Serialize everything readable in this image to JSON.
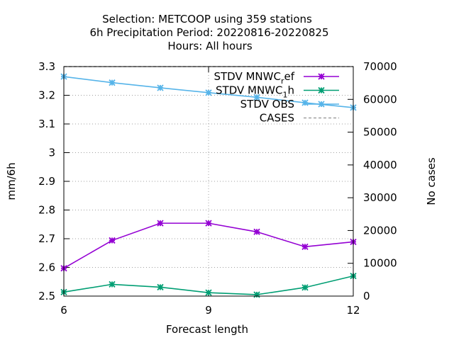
{
  "chart_data": {
    "type": "line",
    "title_lines": [
      "Selection: METCOOP using   359 stations",
      "6h Precipitation   Period: 20220816-20220825",
      "Hours:  All hours"
    ],
    "xlabel": "Forecast length",
    "ylabel": "mm/6h",
    "y2label": "No cases",
    "x": [
      6,
      7,
      8,
      9,
      10,
      11,
      12
    ],
    "xticks": [
      6,
      9,
      12
    ],
    "xlim": [
      6,
      12
    ],
    "ylim": [
      2.5,
      3.3
    ],
    "yticks": [
      2.5,
      2.6,
      2.7,
      2.8,
      2.9,
      3,
      3.1,
      3.2,
      3.3
    ],
    "y2lim": [
      0,
      70000
    ],
    "y2ticks": [
      0,
      10000,
      20000,
      30000,
      40000,
      50000,
      60000,
      70000
    ],
    "grid": true,
    "legend_position": "top-right",
    "series": [
      {
        "name": "STDV MNWC_ref",
        "label_main": "STDV MNWC",
        "label_sub": "r",
        "label_tail": "ef",
        "axis": "y",
        "color": "#9400d3",
        "values": [
          2.597,
          2.694,
          2.754,
          2.754,
          2.724,
          2.672,
          2.689
        ]
      },
      {
        "name": "STDV MNWC_1h",
        "label_main": "STDV MNWC",
        "label_sub": "1",
        "label_tail": "h",
        "axis": "y",
        "color": "#009e73",
        "values": [
          2.514,
          2.541,
          2.531,
          2.512,
          2.505,
          2.53,
          2.57
        ]
      },
      {
        "name": "STDV OBS",
        "label_main": "STDV OBS",
        "label_sub": "",
        "label_tail": "",
        "axis": "y",
        "color": "#56b4e9",
        "values": [
          3.265,
          3.244,
          3.226,
          3.209,
          3.193,
          3.174,
          3.157
        ]
      },
      {
        "name": "CASES",
        "label_main": "CASES",
        "label_sub": "",
        "label_tail": "",
        "axis": "y2",
        "color": "#a0a0a0",
        "dashed": true,
        "values": [
          70000,
          70000,
          70000,
          70000,
          70000,
          70000,
          70000
        ]
      }
    ]
  }
}
